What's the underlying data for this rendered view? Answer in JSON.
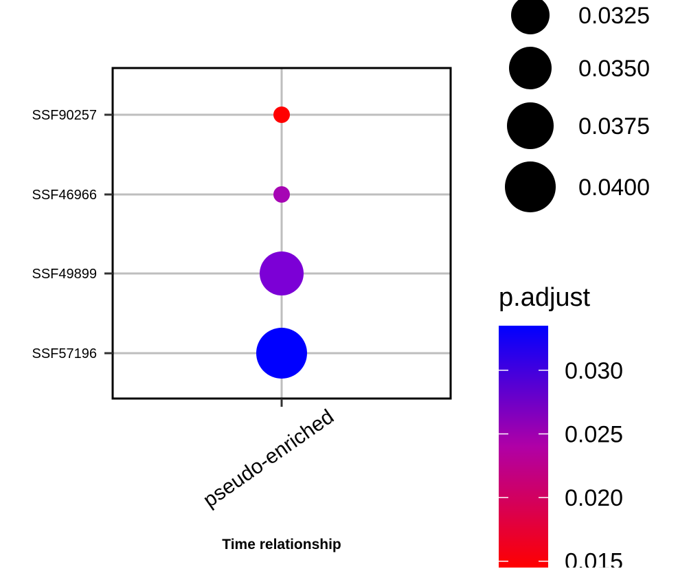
{
  "chart_data": {
    "type": "scatter",
    "subtype": "dot-plot",
    "x_categories": [
      "pseudo-enriched"
    ],
    "y_categories": [
      "SSF90257",
      "SSF46966",
      "SSF49899",
      "SSF57196"
    ],
    "xlabel": "Time relationship",
    "ylabel": "",
    "grid": true,
    "points": [
      {
        "x": "pseudo-enriched",
        "y": "SSF90257",
        "size": 0.031,
        "p_adjust": 0.015,
        "color": "#ff0000"
      },
      {
        "x": "pseudo-enriched",
        "y": "SSF46966",
        "size": 0.031,
        "p_adjust": 0.027,
        "color": "#a605b4"
      },
      {
        "x": "pseudo-enriched",
        "y": "SSF49899",
        "size": 0.039,
        "p_adjust": 0.0315,
        "color": "#7c00d6"
      },
      {
        "x": "pseudo-enriched",
        "y": "SSF57196",
        "size": 0.041,
        "p_adjust": 0.0335,
        "color": "#0000ff"
      }
    ],
    "size_legend": {
      "title": "",
      "values": [
        0.0325,
        0.035,
        0.0375,
        0.04
      ],
      "labels": [
        "0.0325",
        "0.0350",
        "0.0375",
        "0.0400"
      ]
    },
    "color_legend": {
      "title": "p.adjust",
      "range": [
        0.0145,
        0.0335
      ],
      "ticks": [
        0.015,
        0.02,
        0.025,
        0.03
      ],
      "tick_labels": [
        "0.015",
        "0.020",
        "0.025",
        "0.030"
      ],
      "low_color": "#ff0000",
      "high_color": "#0000ff"
    }
  }
}
